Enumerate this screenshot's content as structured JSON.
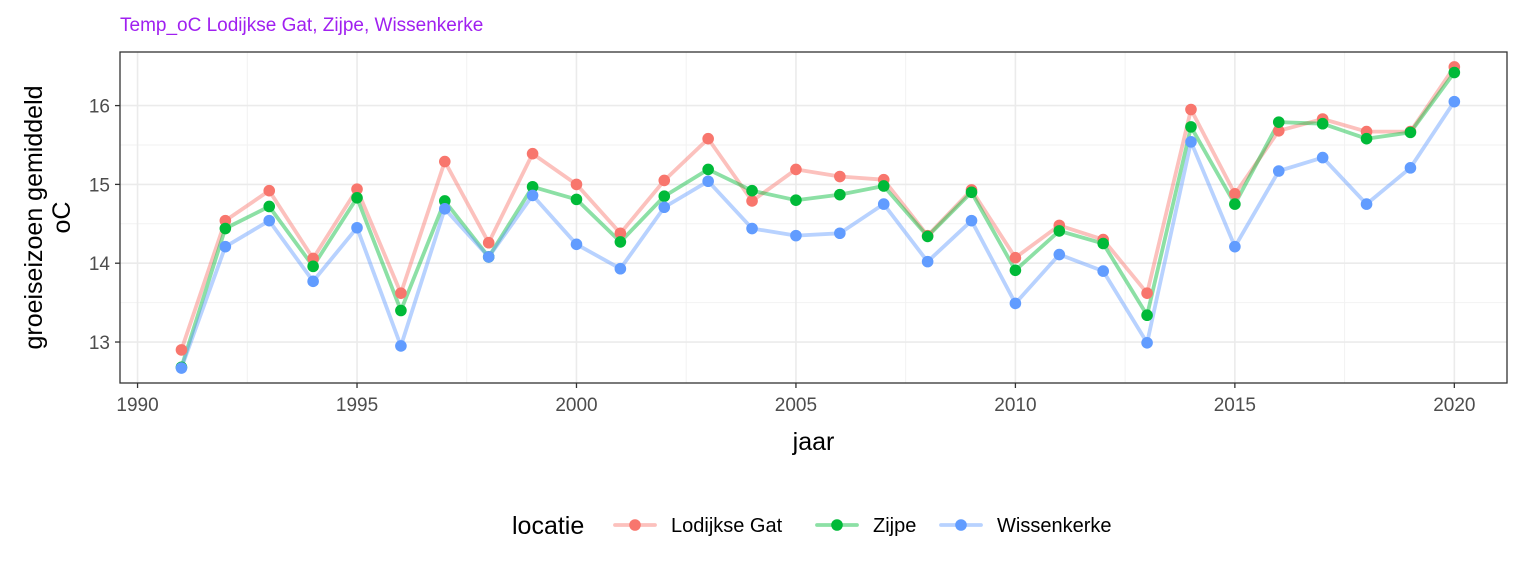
{
  "chart_data": {
    "type": "line",
    "title": "Temp_oC Lodijkse Gat, Zijpe, Wissenkerke",
    "title_color": "#A020F0",
    "xlabel": "jaar",
    "ylabel_lines": [
      "groeiseizoen gemiddeld",
      "oC"
    ],
    "x_ticks": [
      1990,
      1995,
      2000,
      2005,
      2010,
      2015,
      2020
    ],
    "y_ticks": [
      13,
      14,
      15,
      16
    ],
    "xlim": [
      1989.6,
      2021.2
    ],
    "ylim": [
      12.48,
      16.68
    ],
    "grid": true,
    "legend_position": "bottom",
    "legend_title": "locatie",
    "x": [
      1991,
      1992,
      1993,
      1994,
      1995,
      1996,
      1997,
      1998,
      1999,
      2000,
      2001,
      2002,
      2003,
      2004,
      2005,
      2006,
      2007,
      2008,
      2009,
      2010,
      2011,
      2012,
      2013,
      2014,
      2015,
      2016,
      2017,
      2018,
      2019,
      2020
    ],
    "series": [
      {
        "name": "Lodijkse Gat",
        "color": "#F8766D",
        "values": [
          12.9,
          14.54,
          14.92,
          14.06,
          14.94,
          13.62,
          15.29,
          14.26,
          15.39,
          15.0,
          14.38,
          15.05,
          15.58,
          14.79,
          15.19,
          15.1,
          15.06,
          14.35,
          14.93,
          14.07,
          14.48,
          14.3,
          13.62,
          15.95,
          14.88,
          15.68,
          15.83,
          15.67,
          15.67,
          16.49
        ]
      },
      {
        "name": "Zijpe",
        "color": "#00BA38",
        "values": [
          12.68,
          14.44,
          14.72,
          13.96,
          14.83,
          13.4,
          14.79,
          14.08,
          14.97,
          14.81,
          14.27,
          14.85,
          15.19,
          14.92,
          14.8,
          14.87,
          14.98,
          14.34,
          14.9,
          13.91,
          14.41,
          14.25,
          13.34,
          15.73,
          14.75,
          15.79,
          15.77,
          15.58,
          15.66,
          16.42
        ]
      },
      {
        "name": "Wissenkerke",
        "color": "#619CFF",
        "values": [
          12.67,
          14.21,
          14.54,
          13.77,
          14.45,
          12.95,
          14.69,
          14.08,
          14.86,
          14.24,
          13.93,
          14.71,
          15.04,
          14.44,
          14.35,
          14.38,
          14.75,
          14.02,
          14.54,
          13.49,
          14.11,
          13.9,
          12.99,
          15.54,
          14.21,
          15.17,
          15.34,
          14.75,
          15.21,
          16.05
        ]
      }
    ]
  }
}
